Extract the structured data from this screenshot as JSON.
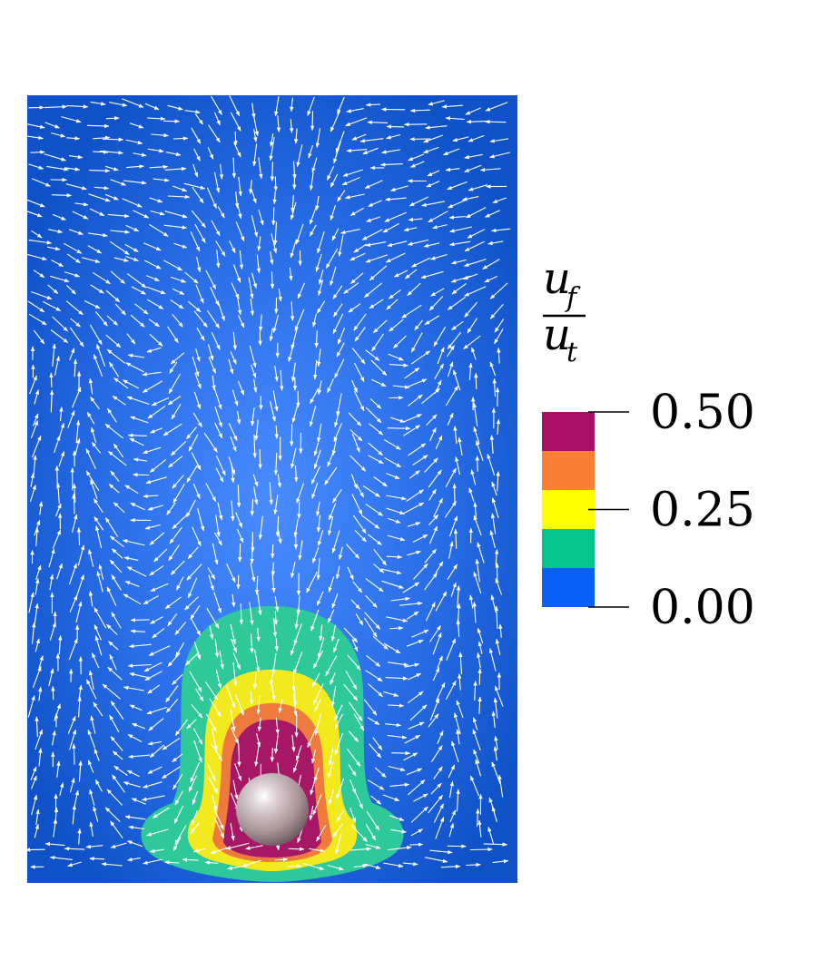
{
  "colorbar": {
    "title": {
      "numerator": "u",
      "numerator_subscript": "f",
      "denominator": "u",
      "denominator_subscript": "t"
    },
    "levels": [
      {
        "range": [
          0.0,
          0.1
        ],
        "color": "#0a5ff5"
      },
      {
        "range": [
          0.1,
          0.2
        ],
        "color": "#08c48c"
      },
      {
        "range": [
          0.2,
          0.3
        ],
        "color": "#ffff00"
      },
      {
        "range": [
          0.3,
          0.4
        ],
        "color": "#fb7e35"
      },
      {
        "range": [
          0.4,
          0.5
        ],
        "color": "#a90f65"
      }
    ],
    "ticks": [
      {
        "value": 0.5,
        "label": "0.50"
      },
      {
        "value": 0.25,
        "label": "0.25"
      },
      {
        "value": 0.0,
        "label": "0.00"
      }
    ]
  },
  "field": {
    "background_color": "#1e64e0",
    "arrow_color": "#ffffff",
    "sphere_color": "#c7b5b8"
  }
}
